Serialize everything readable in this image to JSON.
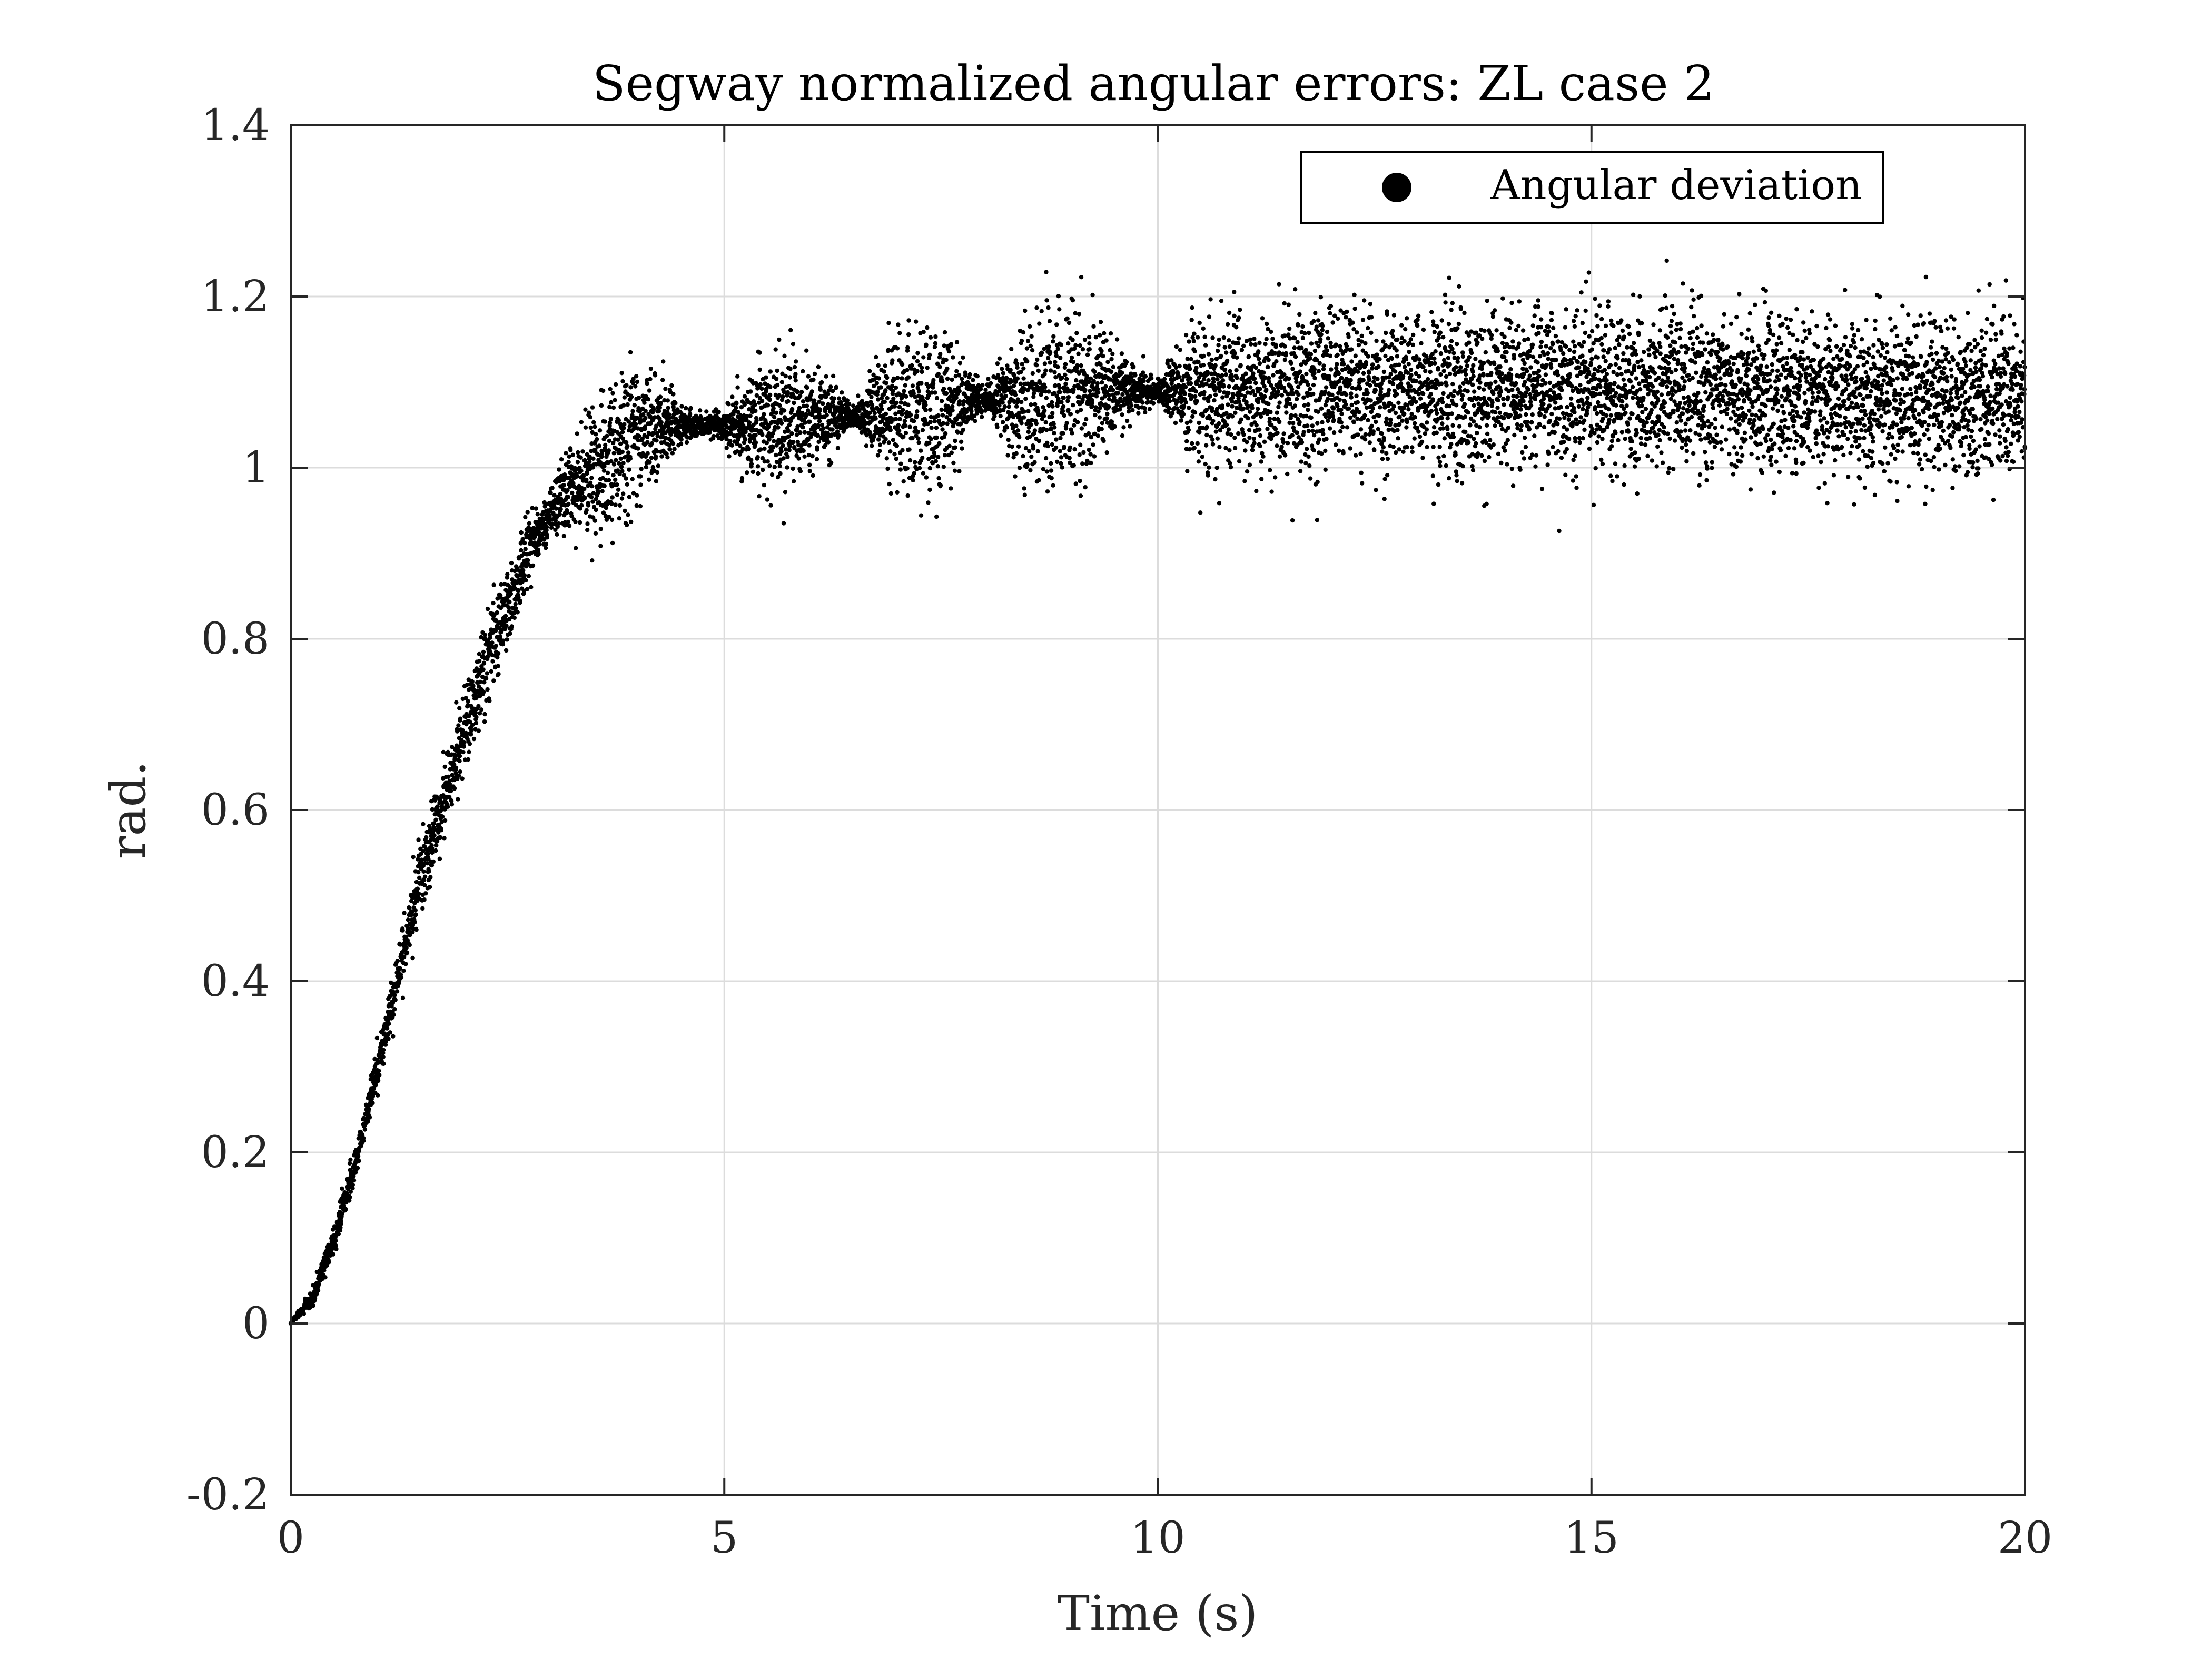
{
  "chart_data": {
    "type": "scatter",
    "title": "Segway normalized angular errors: ZL case 2",
    "xlabel": "Time (s)",
    "ylabel": "rad.",
    "xlim": [
      0,
      20
    ],
    "ylim": [
      -0.2,
      1.4
    ],
    "x_ticks": [
      0,
      5,
      10,
      15,
      20
    ],
    "x_tick_labels": [
      "0",
      "5",
      "10",
      "15",
      "20"
    ],
    "y_ticks": [
      -0.2,
      0,
      0.2,
      0.4,
      0.6,
      0.8,
      1,
      1.2,
      1.4
    ],
    "y_tick_labels": [
      "-0.2",
      "0",
      "0.2",
      "0.4",
      "0.6",
      "0.8",
      "1",
      "1.2",
      "1.4"
    ],
    "grid": true,
    "legend": {
      "position": "top-right"
    },
    "marker_color": "#000000",
    "series": [
      {
        "name": "Angular deviation",
        "x": [
          0,
          0.25,
          0.5,
          0.75,
          1,
          1.25,
          1.5,
          1.75,
          2,
          2.25,
          2.5,
          2.75,
          3,
          3.25,
          3.5,
          3.75,
          4,
          4.25,
          4.5,
          4.75,
          5,
          5.5,
          6,
          6.5,
          7,
          7.5,
          8,
          8.5,
          9,
          9.5,
          10,
          10.5,
          11,
          11.5,
          12,
          12.5,
          13,
          13.5,
          14,
          14.5,
          15,
          15.5,
          16,
          16.5,
          17,
          17.5,
          18,
          18.5,
          19,
          19.5,
          20
        ],
        "y": [
          0,
          0.03,
          0.1,
          0.19,
          0.3,
          0.41,
          0.52,
          0.61,
          0.69,
          0.77,
          0.84,
          0.9,
          0.95,
          0.98,
          1.0,
          1.02,
          1.04,
          1.05,
          1.05,
          1.05,
          1.05,
          1.05,
          1.06,
          1.06,
          1.07,
          1.07,
          1.08,
          1.08,
          1.09,
          1.09,
          1.09,
          1.09,
          1.09,
          1.09,
          1.09,
          1.09,
          1.09,
          1.09,
          1.09,
          1.09,
          1.09,
          1.09,
          1.09,
          1.09,
          1.09,
          1.08,
          1.08,
          1.08,
          1.08,
          1.08,
          1.08
        ],
        "spread": [
          0,
          0.005,
          0.008,
          0.01,
          0.012,
          0.015,
          0.02,
          0.022,
          0.024,
          0.026,
          0.025,
          0.02,
          0.012,
          0.025,
          0.04,
          0.045,
          0.04,
          0.025,
          0.012,
          0.005,
          0.01,
          0.04,
          0.03,
          0.005,
          0.045,
          0.05,
          0.005,
          0.05,
          0.05,
          0.025,
          0.005,
          0.045,
          0.045,
          0.045,
          0.045,
          0.045,
          0.045,
          0.045,
          0.045,
          0.045,
          0.045,
          0.045,
          0.045,
          0.045,
          0.045,
          0.045,
          0.045,
          0.045,
          0.045,
          0.045,
          0.045
        ]
      }
    ]
  }
}
